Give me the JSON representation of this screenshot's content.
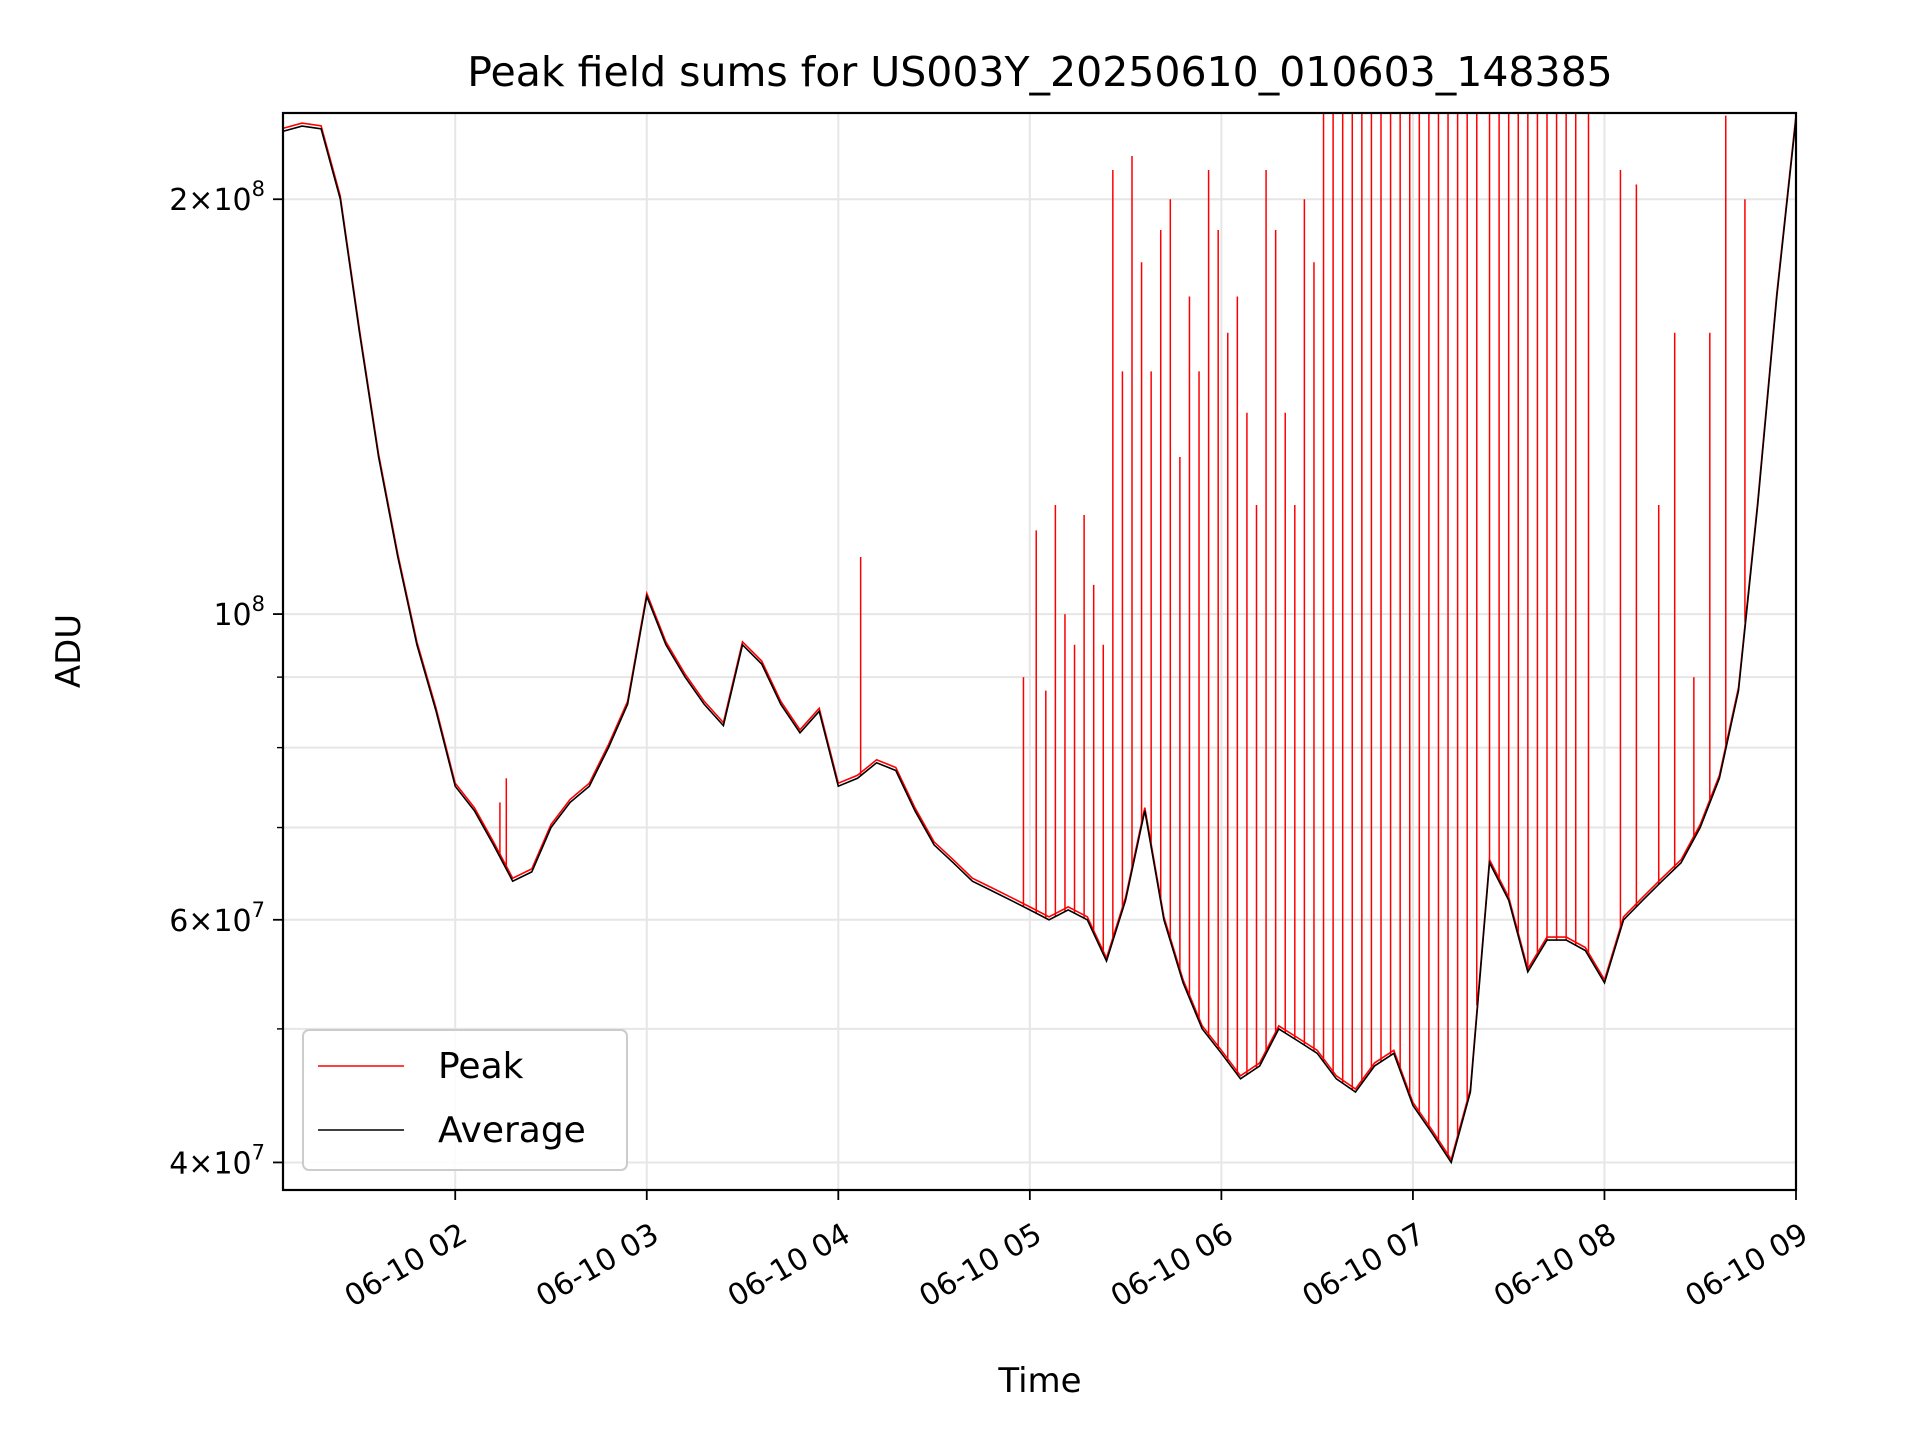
{
  "chart_data": {
    "type": "line",
    "title": "Peak field sums for US003Y_20250610_010603_148385",
    "xlabel": "Time",
    "ylabel": "ADU",
    "x_type": "datetime",
    "xlim": [
      "2025-06-10 01:06:03",
      "2025-06-10 09:00:00"
    ],
    "ylim": [
      38200000,
      231000000
    ],
    "y_scale": "log",
    "grid": true,
    "legend": {
      "placement": "lower-left",
      "entries": [
        "Peak",
        "Average"
      ]
    },
    "x_ticks": [
      "06-10 02",
      "06-10 03",
      "06-10 04",
      "06-10 05",
      "06-10 06",
      "06-10 07",
      "06-10 08",
      "06-10 09"
    ],
    "x_tick_times": [
      "2025-06-10 02:00",
      "2025-06-10 03:00",
      "2025-06-10 04:00",
      "2025-06-10 05:00",
      "2025-06-10 06:00",
      "2025-06-10 07:00",
      "2025-06-10 08:00",
      "2025-06-10 09:00"
    ],
    "y_ticks": [
      {
        "value": 40000000,
        "mantissa": "4",
        "exponent": "7"
      },
      {
        "value": 60000000,
        "mantissa": "6",
        "exponent": "7"
      },
      {
        "value": 100000000,
        "mantissa": "",
        "exponent": "8"
      },
      {
        "value": 200000000,
        "mantissa": "2",
        "exponent": "8"
      }
    ],
    "y_minor_ticks": [
      50000000,
      70000000,
      80000000,
      90000000
    ],
    "series": [
      {
        "name": "Average",
        "color": "#000000",
        "x": [
          "2025-06-10 01:06",
          "2025-06-10 01:12",
          "2025-06-10 01:18",
          "2025-06-10 01:24",
          "2025-06-10 01:30",
          "2025-06-10 01:36",
          "2025-06-10 01:42",
          "2025-06-10 01:48",
          "2025-06-10 01:54",
          "2025-06-10 02:00",
          "2025-06-10 02:06",
          "2025-06-10 02:12",
          "2025-06-10 02:18",
          "2025-06-10 02:24",
          "2025-06-10 02:30",
          "2025-06-10 02:36",
          "2025-06-10 02:42",
          "2025-06-10 02:48",
          "2025-06-10 02:54",
          "2025-06-10 03:00",
          "2025-06-10 03:06",
          "2025-06-10 03:12",
          "2025-06-10 03:18",
          "2025-06-10 03:24",
          "2025-06-10 03:30",
          "2025-06-10 03:36",
          "2025-06-10 03:42",
          "2025-06-10 03:48",
          "2025-06-10 03:54",
          "2025-06-10 04:00",
          "2025-06-10 04:06",
          "2025-06-10 04:12",
          "2025-06-10 04:18",
          "2025-06-10 04:24",
          "2025-06-10 04:30",
          "2025-06-10 04:36",
          "2025-06-10 04:42",
          "2025-06-10 04:48",
          "2025-06-10 04:54",
          "2025-06-10 05:00",
          "2025-06-10 05:06",
          "2025-06-10 05:12",
          "2025-06-10 05:18",
          "2025-06-10 05:24",
          "2025-06-10 05:30",
          "2025-06-10 05:36",
          "2025-06-10 05:42",
          "2025-06-10 05:48",
          "2025-06-10 05:54",
          "2025-06-10 06:00",
          "2025-06-10 06:06",
          "2025-06-10 06:12",
          "2025-06-10 06:18",
          "2025-06-10 06:24",
          "2025-06-10 06:30",
          "2025-06-10 06:36",
          "2025-06-10 06:42",
          "2025-06-10 06:48",
          "2025-06-10 06:54",
          "2025-06-10 07:00",
          "2025-06-10 07:06",
          "2025-06-10 07:12",
          "2025-06-10 07:18",
          "2025-06-10 07:24",
          "2025-06-10 07:30",
          "2025-06-10 07:36",
          "2025-06-10 07:42",
          "2025-06-10 07:48",
          "2025-06-10 07:54",
          "2025-06-10 08:00",
          "2025-06-10 08:06",
          "2025-06-10 08:12",
          "2025-06-10 08:18",
          "2025-06-10 08:24",
          "2025-06-10 08:30",
          "2025-06-10 08:36",
          "2025-06-10 08:42",
          "2025-06-10 08:48",
          "2025-06-10 08:54",
          "2025-06-10 09:00"
        ],
        "values": [
          224000000,
          226000000,
          225000000,
          200000000,
          160000000,
          130000000,
          110000000,
          95000000,
          85000000,
          75000000,
          72000000,
          68000000,
          64000000,
          65000000,
          70000000,
          73000000,
          75000000,
          80000000,
          86000000,
          103000000,
          95000000,
          90000000,
          86000000,
          83000000,
          95000000,
          92000000,
          86000000,
          82000000,
          85000000,
          75000000,
          76000000,
          78000000,
          77000000,
          72000000,
          68000000,
          66000000,
          64000000,
          63000000,
          62000000,
          61000000,
          60000000,
          61000000,
          60000000,
          56000000,
          62000000,
          72000000,
          60000000,
          54000000,
          50000000,
          48000000,
          46000000,
          47000000,
          50000000,
          49000000,
          48000000,
          46000000,
          45000000,
          47000000,
          48000000,
          44000000,
          42000000,
          40000000,
          45000000,
          66000000,
          62000000,
          55000000,
          58000000,
          58000000,
          57000000,
          54000000,
          60000000,
          62000000,
          64000000,
          66000000,
          70000000,
          76000000,
          88000000,
          120000000,
          170000000,
          229000000
        ]
      },
      {
        "name": "Peak",
        "color": "#ff0000",
        "x": [
          "2025-06-10 02:14",
          "2025-06-10 02:16",
          "2025-06-10 04:07",
          "2025-06-10 04:58",
          "2025-06-10 05:02",
          "2025-06-10 05:05",
          "2025-06-10 05:08",
          "2025-06-10 05:11",
          "2025-06-10 05:14",
          "2025-06-10 05:17",
          "2025-06-10 05:20",
          "2025-06-10 05:23",
          "2025-06-10 05:26",
          "2025-06-10 05:29",
          "2025-06-10 05:32",
          "2025-06-10 05:35",
          "2025-06-10 05:38",
          "2025-06-10 05:41",
          "2025-06-10 05:44",
          "2025-06-10 05:47",
          "2025-06-10 05:50",
          "2025-06-10 05:53",
          "2025-06-10 05:56",
          "2025-06-10 05:59",
          "2025-06-10 06:02",
          "2025-06-10 06:05",
          "2025-06-10 06:08",
          "2025-06-10 06:11",
          "2025-06-10 06:14",
          "2025-06-10 06:17",
          "2025-06-10 06:20",
          "2025-06-10 06:23",
          "2025-06-10 06:26",
          "2025-06-10 06:29",
          "2025-06-10 06:32",
          "2025-06-10 06:35",
          "2025-06-10 06:38",
          "2025-06-10 06:41",
          "2025-06-10 06:44",
          "2025-06-10 06:47",
          "2025-06-10 06:50",
          "2025-06-10 06:53",
          "2025-06-10 06:56",
          "2025-06-10 06:59",
          "2025-06-10 07:02",
          "2025-06-10 07:05",
          "2025-06-10 07:08",
          "2025-06-10 07:11",
          "2025-06-10 07:14",
          "2025-06-10 07:17",
          "2025-06-10 07:20",
          "2025-06-10 07:24",
          "2025-06-10 07:27",
          "2025-06-10 07:30",
          "2025-06-10 07:33",
          "2025-06-10 07:36",
          "2025-06-10 07:39",
          "2025-06-10 07:42",
          "2025-06-10 07:45",
          "2025-06-10 07:48",
          "2025-06-10 07:51",
          "2025-06-10 07:55",
          "2025-06-10 08:05",
          "2025-06-10 08:10",
          "2025-06-10 08:17",
          "2025-06-10 08:22",
          "2025-06-10 08:28",
          "2025-06-10 08:33",
          "2025-06-10 08:38",
          "2025-06-10 08:44"
        ],
        "values": [
          73000000,
          76000000,
          110000000,
          90000000,
          115000000,
          88000000,
          120000000,
          100000000,
          95000000,
          118000000,
          105000000,
          95000000,
          210000000,
          150000000,
          215000000,
          180000000,
          150000000,
          190000000,
          200000000,
          130000000,
          170000000,
          150000000,
          210000000,
          190000000,
          160000000,
          170000000,
          140000000,
          120000000,
          210000000,
          190000000,
          140000000,
          120000000,
          200000000,
          180000000,
          231000000,
          231000000,
          231000000,
          231000000,
          231000000,
          231000000,
          231000000,
          231000000,
          231000000,
          231000000,
          231000000,
          231000000,
          231000000,
          231000000,
          231000000,
          231000000,
          231000000,
          231000000,
          231000000,
          231000000,
          231000000,
          231000000,
          231000000,
          231000000,
          231000000,
          231000000,
          231000000,
          231000000,
          210000000,
          205000000,
          120000000,
          160000000,
          90000000,
          160000000,
          230000000,
          200000000
        ]
      }
    ]
  }
}
